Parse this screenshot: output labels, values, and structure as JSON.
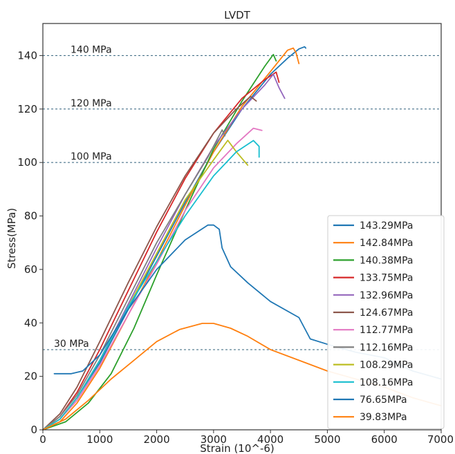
{
  "chart_data": {
    "type": "line",
    "title": "LVDT",
    "xlabel": "Strain (10^-6)",
    "ylabel": "Stress(MPa)",
    "xlim": [
      0,
      7000
    ],
    "ylim": [
      0,
      152
    ],
    "xticks": [
      0,
      1000,
      2000,
      3000,
      4000,
      5000,
      6000,
      7000
    ],
    "yticks": [
      0,
      20,
      40,
      60,
      80,
      100,
      120,
      140
    ],
    "grid": false,
    "legend_position": "lower-right",
    "reference_lines": [
      {
        "y": 140,
        "label": "140 MPa"
      },
      {
        "y": 120,
        "label": "120 MPa"
      },
      {
        "y": 100,
        "label": "100 MPa"
      },
      {
        "y": 30,
        "label": "30 MPa"
      }
    ],
    "series": [
      {
        "name": "143.29MPa",
        "color": "#1f77b4",
        "points": [
          [
            0,
            0
          ],
          [
            300,
            4
          ],
          [
            600,
            12
          ],
          [
            1000,
            25
          ],
          [
            1500,
            45
          ],
          [
            2000,
            65
          ],
          [
            2500,
            85
          ],
          [
            3000,
            104
          ],
          [
            3500,
            120
          ],
          [
            4000,
            133
          ],
          [
            4300,
            139
          ],
          [
            4500,
            142.5
          ],
          [
            4600,
            143.3
          ],
          [
            4620,
            142.8
          ]
        ]
      },
      {
        "name": "142.84MPa",
        "color": "#ff7f0e",
        "points": [
          [
            0,
            0
          ],
          [
            300,
            3
          ],
          [
            600,
            10
          ],
          [
            1000,
            23
          ],
          [
            1500,
            43
          ],
          [
            2000,
            63
          ],
          [
            2500,
            84
          ],
          [
            3000,
            104
          ],
          [
            3500,
            121
          ],
          [
            4000,
            134
          ],
          [
            4300,
            142
          ],
          [
            4400,
            142.8
          ],
          [
            4450,
            141
          ],
          [
            4500,
            137
          ]
        ]
      },
      {
        "name": "140.38MPa",
        "color": "#2ca02c",
        "points": [
          [
            0,
            0
          ],
          [
            400,
            3
          ],
          [
            800,
            10
          ],
          [
            1200,
            21
          ],
          [
            1600,
            38
          ],
          [
            2000,
            58
          ],
          [
            2500,
            82
          ],
          [
            3000,
            105
          ],
          [
            3500,
            123
          ],
          [
            3900,
            136
          ],
          [
            4050,
            140.4
          ],
          [
            4100,
            138
          ]
        ]
      },
      {
        "name": "133.75MPa",
        "color": "#d62728",
        "points": [
          [
            0,
            0
          ],
          [
            300,
            5
          ],
          [
            600,
            14
          ],
          [
            1000,
            30
          ],
          [
            1500,
            52
          ],
          [
            2000,
            74
          ],
          [
            2500,
            94
          ],
          [
            3000,
            111
          ],
          [
            3500,
            124
          ],
          [
            3900,
            131
          ],
          [
            4100,
            133.8
          ],
          [
            4150,
            130
          ]
        ]
      },
      {
        "name": "132.96MPa",
        "color": "#9467bd",
        "points": [
          [
            0,
            0
          ],
          [
            300,
            4
          ],
          [
            600,
            12
          ],
          [
            1000,
            26
          ],
          [
            1500,
            47
          ],
          [
            2000,
            68
          ],
          [
            2500,
            88
          ],
          [
            3000,
            106
          ],
          [
            3500,
            120
          ],
          [
            3900,
            129
          ],
          [
            4050,
            133
          ],
          [
            4150,
            128
          ],
          [
            4250,
            124
          ]
        ]
      },
      {
        "name": "124.67MPa",
        "color": "#8c564b",
        "points": [
          [
            0,
            0
          ],
          [
            300,
            6
          ],
          [
            600,
            16
          ],
          [
            1000,
            33
          ],
          [
            1500,
            55
          ],
          [
            2000,
            76
          ],
          [
            2500,
            95
          ],
          [
            3000,
            111
          ],
          [
            3400,
            120
          ],
          [
            3650,
            124.7
          ],
          [
            3750,
            123
          ]
        ]
      },
      {
        "name": "112.77MPa",
        "color": "#e377c2",
        "points": [
          [
            0,
            0
          ],
          [
            300,
            4
          ],
          [
            600,
            11
          ],
          [
            1000,
            24
          ],
          [
            1500,
            43
          ],
          [
            2000,
            62
          ],
          [
            2500,
            82
          ],
          [
            3000,
            98
          ],
          [
            3400,
            107
          ],
          [
            3700,
            112.8
          ],
          [
            3850,
            112
          ]
        ]
      },
      {
        "name": "112.16MPa",
        "color": "#7f7f7f",
        "points": [
          [
            0,
            0
          ],
          [
            300,
            5
          ],
          [
            600,
            13
          ],
          [
            1000,
            28
          ],
          [
            1500,
            49
          ],
          [
            2000,
            70
          ],
          [
            2500,
            88
          ],
          [
            2900,
            102
          ],
          [
            3150,
            112.2
          ],
          [
            3200,
            110
          ]
        ]
      },
      {
        "name": "108.29MPa",
        "color": "#bcbd22",
        "points": [
          [
            0,
            0
          ],
          [
            300,
            4
          ],
          [
            600,
            12
          ],
          [
            1000,
            26
          ],
          [
            1500,
            46
          ],
          [
            2000,
            66
          ],
          [
            2500,
            86
          ],
          [
            3000,
            101
          ],
          [
            3250,
            108.3
          ],
          [
            3400,
            104
          ],
          [
            3600,
            99
          ]
        ]
      },
      {
        "name": "108.16MPa",
        "color": "#17becf",
        "points": [
          [
            0,
            0
          ],
          [
            300,
            4
          ],
          [
            600,
            12
          ],
          [
            1000,
            26
          ],
          [
            1500,
            46
          ],
          [
            2000,
            63
          ],
          [
            2500,
            80
          ],
          [
            3000,
            95
          ],
          [
            3400,
            104
          ],
          [
            3700,
            108.2
          ],
          [
            3800,
            106
          ],
          [
            3800,
            102
          ]
        ]
      },
      {
        "name": "76.65MPa",
        "color": "#1f77b4",
        "points": [
          [
            200,
            21
          ],
          [
            500,
            21
          ],
          [
            700,
            22
          ],
          [
            1000,
            28
          ],
          [
            1500,
            45
          ],
          [
            2000,
            60
          ],
          [
            2500,
            71
          ],
          [
            2900,
            76.6
          ],
          [
            3000,
            76.6
          ],
          [
            3100,
            75
          ],
          [
            3150,
            68
          ],
          [
            3300,
            61
          ],
          [
            3600,
            55
          ],
          [
            4000,
            48
          ],
          [
            4500,
            42
          ],
          [
            4700,
            34
          ],
          [
            5000,
            32
          ],
          [
            5500,
            29
          ],
          [
            6000,
            27
          ],
          [
            6500,
            22
          ],
          [
            7000,
            19
          ]
        ]
      },
      {
        "name": "39.83MPa",
        "color": "#ff7f0e",
        "points": [
          [
            0,
            0
          ],
          [
            400,
            4
          ],
          [
            800,
            11
          ],
          [
            1200,
            19
          ],
          [
            1600,
            26
          ],
          [
            2000,
            33
          ],
          [
            2400,
            37.5
          ],
          [
            2800,
            39.8
          ],
          [
            3000,
            39.8
          ],
          [
            3300,
            38
          ],
          [
            3600,
            35
          ],
          [
            4000,
            30
          ],
          [
            4500,
            26
          ],
          [
            5000,
            22
          ],
          [
            5500,
            19
          ],
          [
            6000,
            16
          ],
          [
            6500,
            12
          ],
          [
            7000,
            9
          ]
        ]
      }
    ]
  }
}
